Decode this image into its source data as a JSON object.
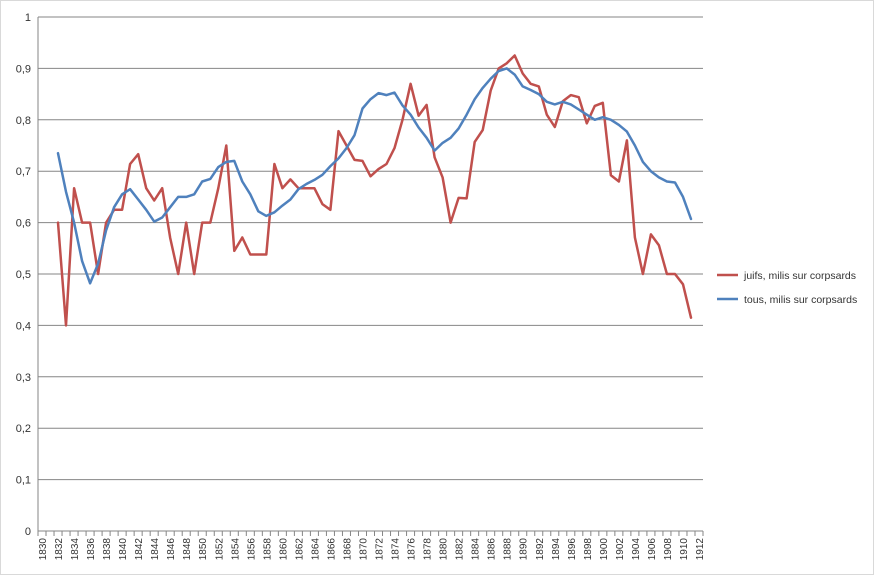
{
  "chart_data": {
    "type": "line",
    "title": "",
    "xlabel": "",
    "ylabel": "",
    "xlim": [
      1830,
      1913
    ],
    "ylim": [
      0,
      1
    ],
    "y_ticks": [
      "0",
      "0,1",
      "0,2",
      "0,3",
      "0,4",
      "0,5",
      "0,6",
      "0,7",
      "0,8",
      "0,9",
      "1"
    ],
    "x_ticks": [
      "1830",
      "1832",
      "1834",
      "1836",
      "1838",
      "1840",
      "1842",
      "1844",
      "1846",
      "1848",
      "1850",
      "1852",
      "1854",
      "1856",
      "1858",
      "1860",
      "1862",
      "1864",
      "1866",
      "1868",
      "1870",
      "1872",
      "1874",
      "1876",
      "1878",
      "1880",
      "1882",
      "1884",
      "1886",
      "1888",
      "1890",
      "1892",
      "1894",
      "1896",
      "1898",
      "1900",
      "1902",
      "1904",
      "1906",
      "1908",
      "1910",
      "1912"
    ],
    "grid": "horizontal",
    "legend_position": "right",
    "series": [
      {
        "name": "juifs, milis sur corpsards",
        "color": "#c0504d",
        "x": [
          1832,
          1833,
          1834,
          1835,
          1836,
          1837,
          1838,
          1839,
          1840,
          1841,
          1842,
          1843,
          1844,
          1845,
          1846,
          1847,
          1848,
          1849,
          1850,
          1851,
          1852,
          1853,
          1854,
          1855,
          1856,
          1857,
          1858,
          1859,
          1860,
          1861,
          1862,
          1863,
          1864,
          1865,
          1866,
          1867,
          1868,
          1869,
          1870,
          1871,
          1872,
          1873,
          1874,
          1875,
          1876,
          1877,
          1878,
          1879,
          1880,
          1881,
          1882,
          1883,
          1884,
          1885,
          1886,
          1887,
          1888,
          1889,
          1890,
          1891,
          1892,
          1893,
          1894,
          1895,
          1896,
          1897,
          1898,
          1899,
          1900,
          1901,
          1902,
          1903,
          1904,
          1905,
          1906,
          1907,
          1908,
          1909,
          1910,
          1911
        ],
        "values": [
          0.6,
          0.4,
          0.667,
          0.6,
          0.6,
          0.5,
          0.6,
          0.625,
          0.625,
          0.714,
          0.733,
          0.667,
          0.643,
          0.667,
          0.57,
          0.5,
          0.6,
          0.5,
          0.6,
          0.6,
          0.667,
          0.75,
          0.545,
          0.571,
          0.538,
          0.538,
          0.538,
          0.714,
          0.667,
          0.684,
          0.667,
          0.667,
          0.667,
          0.636,
          0.625,
          0.778,
          0.75,
          0.722,
          0.72,
          0.69,
          0.704,
          0.714,
          0.745,
          0.8,
          0.87,
          0.808,
          0.829,
          0.727,
          0.688,
          0.6,
          0.648,
          0.647,
          0.757,
          0.78,
          0.857,
          0.9,
          0.91,
          0.925,
          0.89,
          0.87,
          0.865,
          0.81,
          0.786,
          0.836,
          0.848,
          0.844,
          0.793,
          0.827,
          0.833,
          0.692,
          0.68,
          0.76,
          0.571,
          0.5,
          0.577,
          0.556,
          0.5,
          0.5,
          0.48,
          0.415
        ]
      },
      {
        "name": "tous, milis sur corpsards",
        "color": "#4f81bd",
        "x": [
          1832,
          1833,
          1834,
          1835,
          1836,
          1837,
          1838,
          1839,
          1840,
          1841,
          1842,
          1843,
          1844,
          1845,
          1846,
          1847,
          1848,
          1849,
          1850,
          1851,
          1852,
          1853,
          1854,
          1855,
          1856,
          1857,
          1858,
          1859,
          1860,
          1861,
          1862,
          1863,
          1864,
          1865,
          1866,
          1867,
          1868,
          1869,
          1870,
          1871,
          1872,
          1873,
          1874,
          1875,
          1876,
          1877,
          1878,
          1879,
          1880,
          1881,
          1882,
          1883,
          1884,
          1885,
          1886,
          1887,
          1888,
          1889,
          1890,
          1891,
          1892,
          1893,
          1894,
          1895,
          1896,
          1897,
          1898,
          1899,
          1900,
          1901,
          1902,
          1903,
          1904,
          1905,
          1906,
          1907,
          1908,
          1909,
          1910,
          1911
        ],
        "values": [
          0.735,
          0.66,
          0.6,
          0.525,
          0.482,
          0.52,
          0.585,
          0.63,
          0.655,
          0.665,
          0.645,
          0.625,
          0.602,
          0.61,
          0.63,
          0.65,
          0.65,
          0.655,
          0.68,
          0.685,
          0.708,
          0.718,
          0.72,
          0.68,
          0.655,
          0.622,
          0.613,
          0.62,
          0.633,
          0.645,
          0.665,
          0.675,
          0.683,
          0.693,
          0.71,
          0.725,
          0.745,
          0.77,
          0.822,
          0.84,
          0.852,
          0.848,
          0.853,
          0.828,
          0.81,
          0.785,
          0.765,
          0.74,
          0.755,
          0.765,
          0.783,
          0.81,
          0.84,
          0.862,
          0.88,
          0.895,
          0.9,
          0.888,
          0.865,
          0.858,
          0.85,
          0.835,
          0.83,
          0.835,
          0.83,
          0.82,
          0.81,
          0.8,
          0.805,
          0.8,
          0.79,
          0.777,
          0.75,
          0.718,
          0.7,
          0.688,
          0.68,
          0.678,
          0.65,
          0.607
        ]
      }
    ]
  }
}
